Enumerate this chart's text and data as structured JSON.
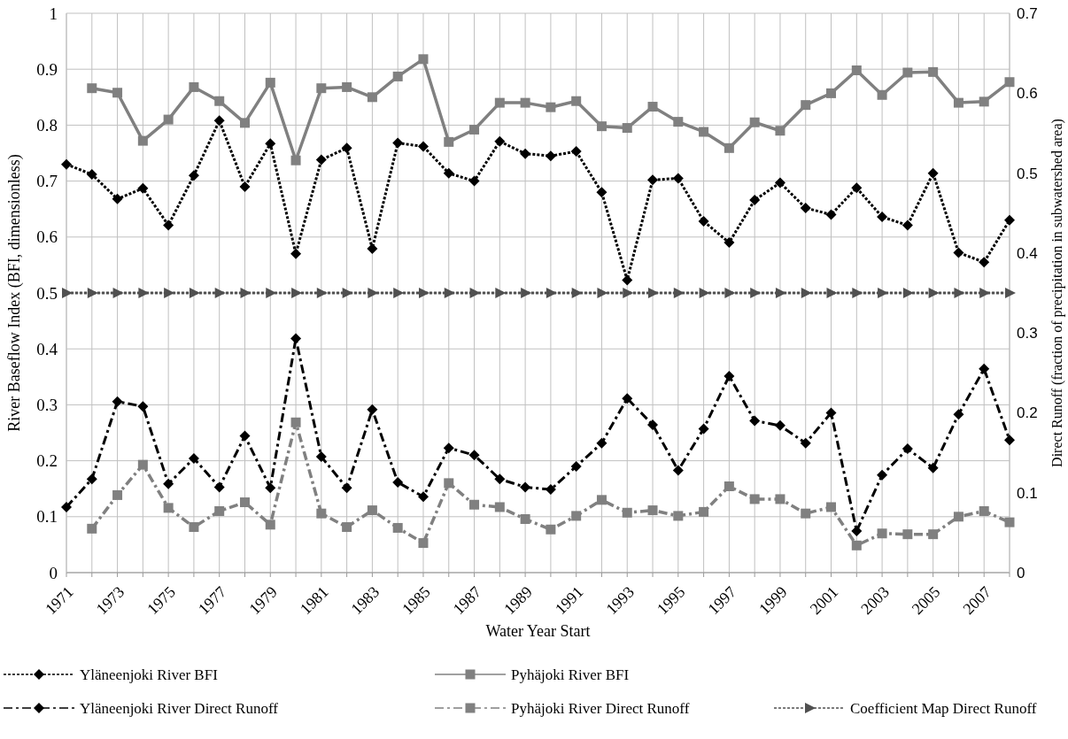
{
  "chart_data": {
    "type": "line",
    "xlabel": "Water Year Start",
    "ylabel": "River Baseflow Index (BFI, dimensionless)",
    "y2label": "Direct Runoff (fraction of precipitation in subwatershed area)",
    "x": [
      1971,
      1972,
      1973,
      1974,
      1975,
      1976,
      1977,
      1978,
      1979,
      1980,
      1981,
      1982,
      1983,
      1984,
      1985,
      1986,
      1987,
      1988,
      1989,
      1990,
      1991,
      1992,
      1993,
      1994,
      1995,
      1996,
      1997,
      1998,
      1999,
      2000,
      2001,
      2002,
      2003,
      2004,
      2005,
      2006,
      2007,
      2008
    ],
    "xlim": [
      1971,
      2008
    ],
    "xticks": [
      1971,
      {
        "value": 1972,
        "label": null
      },
      1973,
      {
        "value": 1974,
        "label": null
      },
      1975,
      {
        "value": 1976,
        "label": null
      },
      1977,
      {
        "value": 1978,
        "label": null
      },
      1979,
      {
        "value": 1980,
        "label": null
      },
      1981,
      {
        "value": 1982,
        "label": null
      },
      1983,
      {
        "value": 1984,
        "label": null
      },
      1985,
      {
        "value": 1986,
        "label": null
      },
      1987,
      {
        "value": 1988,
        "label": null
      },
      1989,
      {
        "value": 1990,
        "label": null
      },
      1991,
      {
        "value": 1992,
        "label": null
      },
      1993,
      {
        "value": 1994,
        "label": null
      },
      1995,
      {
        "value": 1996,
        "label": null
      },
      1997,
      {
        "value": 1998,
        "label": null
      },
      1999,
      {
        "value": 2000,
        "label": null
      },
      2001,
      {
        "value": 2002,
        "label": null
      },
      2003,
      {
        "value": 2004,
        "label": null
      },
      2005,
      {
        "value": 2006,
        "label": null
      },
      2007,
      {
        "value": 2008,
        "label": null
      }
    ],
    "ylim": [
      0,
      1
    ],
    "yticks": [
      0,
      0.1,
      0.2,
      0.3,
      0.4,
      0.5,
      0.6,
      0.7,
      0.8,
      0.9,
      1
    ],
    "y2lim": [
      0,
      0.7
    ],
    "y2ticks": [
      0,
      0.1,
      0.2,
      0.3,
      0.4,
      0.5,
      0.6,
      0.7
    ],
    "grid": true,
    "legend": "bottom",
    "series": [
      {
        "name": "Yläneenjoki River BFI",
        "color": "#000000",
        "marker": "diamond",
        "line_style": "dotted",
        "values": [
          0.73,
          0.712,
          0.668,
          0.687,
          0.621,
          0.71,
          0.808,
          0.69,
          0.767,
          0.57,
          0.738,
          0.759,
          0.579,
          0.768,
          0.762,
          0.714,
          0.7,
          0.771,
          0.749,
          0.745,
          0.753,
          0.68,
          0.523,
          0.702,
          0.705,
          0.628,
          0.59,
          0.666,
          0.697,
          0.652,
          0.64,
          0.688,
          0.636,
          0.621,
          0.714,
          0.572,
          0.555,
          0.63
        ]
      },
      {
        "name": "Pyhäjoki River BFI",
        "color": "#808080",
        "marker": "square",
        "line_style": "solid",
        "values": [
          null,
          0.866,
          0.858,
          0.772,
          0.81,
          0.868,
          0.843,
          0.804,
          0.876,
          0.737,
          0.866,
          0.868,
          0.85,
          0.887,
          0.918,
          0.77,
          0.792,
          0.84,
          0.84,
          0.832,
          0.843,
          0.798,
          0.795,
          0.833,
          0.806,
          0.788,
          0.759,
          0.805,
          0.79,
          0.836,
          0.857,
          0.898,
          0.854,
          0.894,
          0.895,
          0.84,
          0.842,
          0.877
        ]
      },
      {
        "name": "Yläneenjoki River Direct Runoff",
        "color": "#000000",
        "marker": "diamond",
        "line_style": "dashed",
        "axis": "y2",
        "values": [
          0.082,
          0.117,
          0.214,
          0.208,
          0.111,
          0.143,
          0.107,
          0.171,
          0.106,
          0.293,
          0.145,
          0.106,
          0.204,
          0.113,
          0.095,
          0.156,
          0.147,
          0.117,
          0.107,
          0.104,
          0.133,
          0.162,
          0.218,
          0.185,
          0.128,
          0.18,
          0.246,
          0.19,
          0.184,
          0.162,
          0.2,
          0.052,
          0.122,
          0.155,
          0.131,
          0.198,
          0.255,
          0.166
        ]
      },
      {
        "name": "Pyhäjoki River Direct Runoff",
        "color": "#808080",
        "marker": "square",
        "line_style": "dashed",
        "axis": "y2",
        "values": [
          null,
          0.055,
          0.097,
          0.135,
          0.081,
          0.057,
          0.077,
          0.088,
          0.06,
          0.188,
          0.074,
          0.057,
          0.078,
          0.056,
          0.037,
          0.112,
          0.085,
          0.082,
          0.067,
          0.054,
          0.071,
          0.091,
          0.075,
          0.078,
          0.071,
          0.076,
          0.108,
          0.092,
          0.092,
          0.074,
          0.082,
          0.034,
          0.049,
          0.048,
          0.048,
          0.07,
          0.077,
          0.063
        ]
      },
      {
        "name": "Coefficient Map Direct Runoff",
        "color": "#505050",
        "marker": "triangle",
        "line_style": "dotted",
        "axis": "y2",
        "values": [
          0.35,
          0.35,
          0.35,
          0.35,
          0.35,
          0.35,
          0.35,
          0.35,
          0.35,
          0.35,
          0.35,
          0.35,
          0.35,
          0.35,
          0.35,
          0.35,
          0.35,
          0.35,
          0.35,
          0.35,
          0.35,
          0.35,
          0.35,
          0.35,
          0.35,
          0.35,
          0.35,
          0.35,
          0.35,
          0.35,
          0.35,
          0.35,
          0.35,
          0.35,
          0.35,
          0.35,
          0.35,
          0.35
        ]
      }
    ]
  }
}
